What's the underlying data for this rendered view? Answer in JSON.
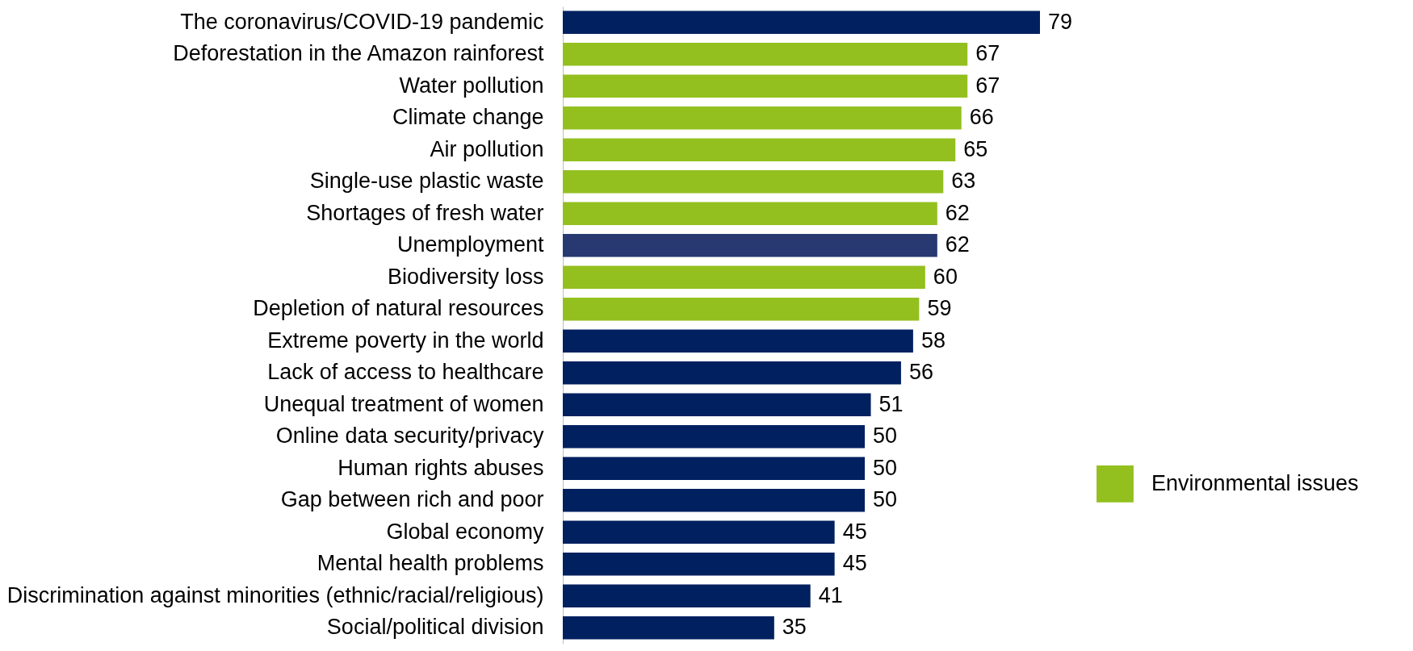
{
  "chart_data": {
    "type": "bar",
    "orientation": "horizontal",
    "data_labels": true,
    "legend": "right",
    "categories": [
      "The coronavirus/COVID-19 pandemic",
      "Deforestation in the Amazon rainforest",
      "Water pollution",
      "Climate change",
      "Air pollution",
      "Single-use plastic waste",
      "Shortages of fresh water",
      "Unemployment",
      "Biodiversity loss",
      "Depletion of natural resources",
      "Extreme poverty in the world",
      "Lack of access to healthcare",
      "Unequal treatment of women",
      "Online data security/privacy",
      "Human rights abuses",
      "Gap between rich and poor",
      "Global economy",
      "Mental health problems",
      "Discrimination against minorities (ethnic/racial/religious)",
      "Social/political division"
    ],
    "series": [
      {
        "name": "Environmental issues",
        "color": "#93c01f",
        "values": [
          null,
          67,
          67,
          66,
          65,
          63,
          62,
          null,
          60,
          59,
          null,
          null,
          null,
          null,
          null,
          null,
          null,
          null,
          null,
          null
        ]
      },
      {
        "color": "#002060",
        "colors": [
          null,
          null,
          null,
          null,
          null,
          null,
          null,
          "#283870",
          null,
          null,
          null,
          null,
          null,
          null,
          null,
          null,
          null,
          null,
          null,
          null
        ],
        "values": [
          79,
          null,
          null,
          null,
          null,
          null,
          null,
          62,
          null,
          null,
          58,
          56,
          51,
          50,
          50,
          50,
          45,
          45,
          41,
          35
        ]
      }
    ]
  }
}
